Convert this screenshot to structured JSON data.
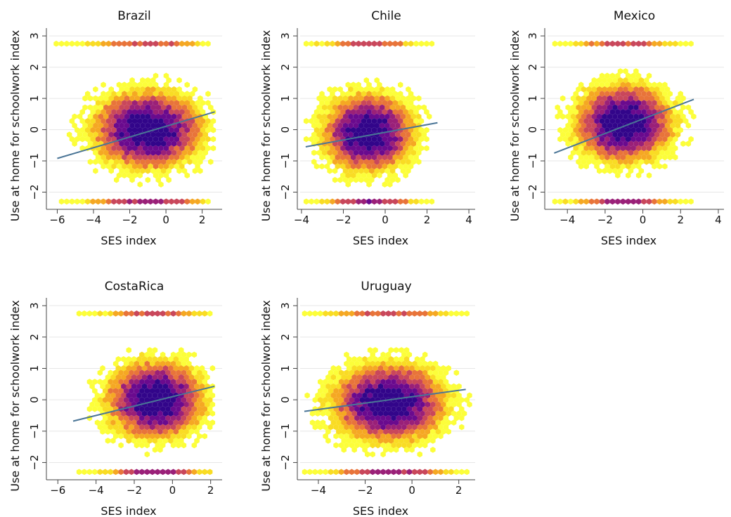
{
  "chart_data": [
    {
      "type": "scatter",
      "title": "Brazil",
      "xlabel": "SES index",
      "ylabel": "Use at home for schoolwork index",
      "xlim": [
        -6.6,
        3.1
      ],
      "ylim": [
        -2.55,
        3.25
      ],
      "xticks": [
        -6,
        -4,
        -2,
        0,
        2
      ],
      "yticks": [
        -2,
        -1,
        0,
        1,
        2,
        3
      ],
      "grid": "horizontal",
      "fit_line": {
        "x": [
          -6.0,
          2.7
        ],
        "y": [
          -0.92,
          0.57
        ]
      },
      "density_center": {
        "x": -1.0,
        "y": 0.0
      },
      "point_extent": {
        "x": [
          -6.2,
          2.7
        ],
        "y": [
          -2.3,
          2.75
        ]
      },
      "slope": 0.17
    },
    {
      "type": "scatter",
      "title": "Chile",
      "xlabel": "SES index",
      "ylabel": "Use at home for schoolwork index",
      "xlim": [
        -4.2,
        4.3
      ],
      "ylim": [
        -2.55,
        3.25
      ],
      "xticks": [
        -4,
        -2,
        0,
        2,
        4
      ],
      "yticks": [
        -2,
        -1,
        0,
        1,
        2,
        3
      ],
      "grid": "horizontal",
      "fit_line": {
        "x": [
          -3.8,
          2.5
        ],
        "y": [
          -0.55,
          0.22
        ]
      },
      "density_center": {
        "x": -0.8,
        "y": -0.1
      },
      "point_extent": {
        "x": [
          -3.9,
          2.5
        ],
        "y": [
          -2.3,
          2.75
        ]
      },
      "slope": 0.12
    },
    {
      "type": "scatter",
      "title": "Mexico",
      "xlabel": "SES index",
      "ylabel": "Use at home for schoolwork index",
      "xlim": [
        -5.2,
        4.3
      ],
      "ylim": [
        -2.55,
        3.25
      ],
      "xticks": [
        -4,
        -2,
        0,
        2,
        4
      ],
      "yticks": [
        -2,
        -1,
        0,
        1,
        2,
        3
      ],
      "grid": "horizontal",
      "fit_line": {
        "x": [
          -4.7,
          2.7
        ],
        "y": [
          -0.75,
          0.97
        ]
      },
      "density_center": {
        "x": -1.0,
        "y": 0.2
      },
      "point_extent": {
        "x": [
          -4.8,
          2.8
        ],
        "y": [
          -2.3,
          2.75
        ]
      },
      "slope": 0.23
    },
    {
      "type": "scatter",
      "title": "CostaRica",
      "xlabel": "SES index",
      "ylabel": "Use at home for schoolwork index",
      "xlim": [
        -6.6,
        2.6
      ],
      "ylim": [
        -2.55,
        3.25
      ],
      "xticks": [
        -6,
        -4,
        -2,
        0,
        2
      ],
      "yticks": [
        -2,
        -1,
        0,
        1,
        2,
        3
      ],
      "grid": "horizontal",
      "fit_line": {
        "x": [
          -5.2,
          2.2
        ],
        "y": [
          -0.68,
          0.43
        ]
      },
      "density_center": {
        "x": -0.9,
        "y": 0.0
      },
      "point_extent": {
        "x": [
          -5.3,
          2.2
        ],
        "y": [
          -2.3,
          2.75
        ]
      },
      "slope": 0.15
    },
    {
      "type": "scatter",
      "title": "Uruguay",
      "xlabel": "SES index",
      "ylabel": "Use at home for schoolwork index",
      "xlim": [
        -4.9,
        2.7
      ],
      "ylim": [
        -2.55,
        3.25
      ],
      "xticks": [
        -4,
        -2,
        0,
        2
      ],
      "yticks": [
        -2,
        -1,
        0,
        1,
        2,
        3
      ],
      "grid": "horizontal",
      "fit_line": {
        "x": [
          -4.6,
          2.3
        ],
        "y": [
          -0.37,
          0.33
        ]
      },
      "density_center": {
        "x": -1.0,
        "y": -0.1
      },
      "point_extent": {
        "x": [
          -4.7,
          2.5
        ],
        "y": [
          -2.3,
          2.75
        ]
      },
      "slope": 0.1
    }
  ],
  "style": {
    "palette": [
      "#fcfe3a",
      "#f9dc24",
      "#f5a823",
      "#e8743a",
      "#c9475b",
      "#9a2078",
      "#6a0a8e",
      "#32058a"
    ],
    "fit_line_color": "#4a7596",
    "grid_color": "#e6e6e6",
    "axis_color": "#444444"
  }
}
